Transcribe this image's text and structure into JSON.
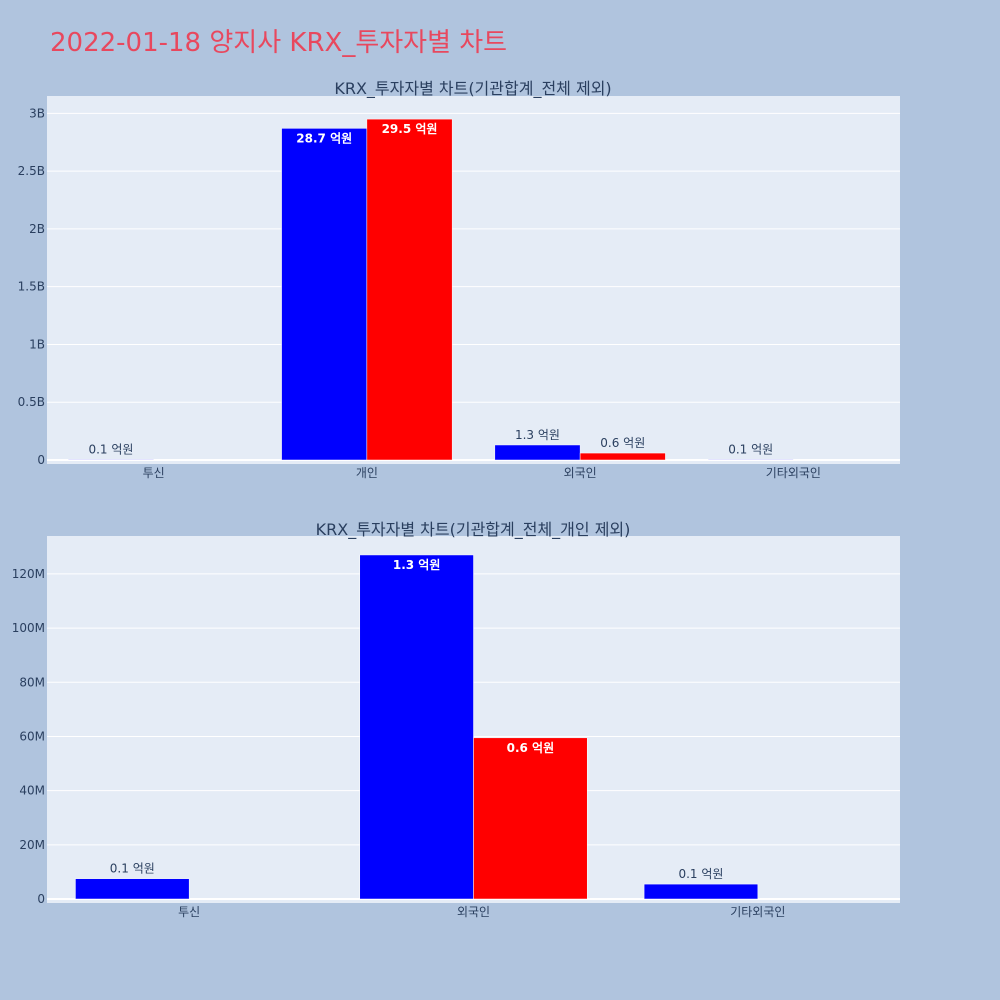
{
  "title": "2022-01-18 양지사 KRX_투자자별 차트",
  "colors": {
    "accent_title": "#e8485e",
    "background": "#b0c4de",
    "plot_bg": "#e5ecf6",
    "series_1": "#0000ff",
    "series_2": "#ff0000"
  },
  "chart_data": [
    {
      "type": "bar",
      "title": "KRX_투자자별 차트(기관합계_전체 제외)",
      "categories": [
        "투신",
        "개인",
        "외국인",
        "기타외국인"
      ],
      "series": [
        {
          "color": "#0000ff",
          "values": [
            5000000,
            2870000000,
            130000000,
            5000000
          ],
          "labels": [
            "0.1 억원",
            "28.7 억원",
            "1.3 억원",
            "0.1 억원"
          ]
        },
        {
          "color": "#ff0000",
          "values": [
            0,
            2950000000,
            60000000,
            0
          ],
          "labels": [
            "",
            "29.5 억원",
            "0.6 억원",
            ""
          ]
        }
      ],
      "ylim": [
        0,
        3150000000
      ],
      "yticks": [
        0,
        500000000,
        1000000000,
        1500000000,
        2000000000,
        2500000000,
        3000000000
      ],
      "yticklabels": [
        "0",
        "0.5B",
        "1B",
        "1.5B",
        "2B",
        "2.5B",
        "3B"
      ],
      "grid": true
    },
    {
      "type": "bar",
      "title": "KRX_투자자별 차트(기관합계_전체_개인 제외)",
      "categories": [
        "투신",
        "외국인",
        "기타외국인"
      ],
      "series": [
        {
          "color": "#0000ff",
          "values": [
            7500000,
            127000000,
            5500000
          ],
          "labels": [
            "0.1 억원",
            "1.3 억원",
            "0.1 억원"
          ]
        },
        {
          "color": "#ff0000",
          "values": [
            0,
            59500000,
            0
          ],
          "labels": [
            "",
            "0.6 억원",
            ""
          ]
        }
      ],
      "ylim": [
        0,
        134000000
      ],
      "yticks": [
        0,
        20000000,
        40000000,
        60000000,
        80000000,
        100000000,
        120000000
      ],
      "yticklabels": [
        "0",
        "20M",
        "40M",
        "60M",
        "80M",
        "100M",
        "120M"
      ],
      "grid": true
    }
  ]
}
